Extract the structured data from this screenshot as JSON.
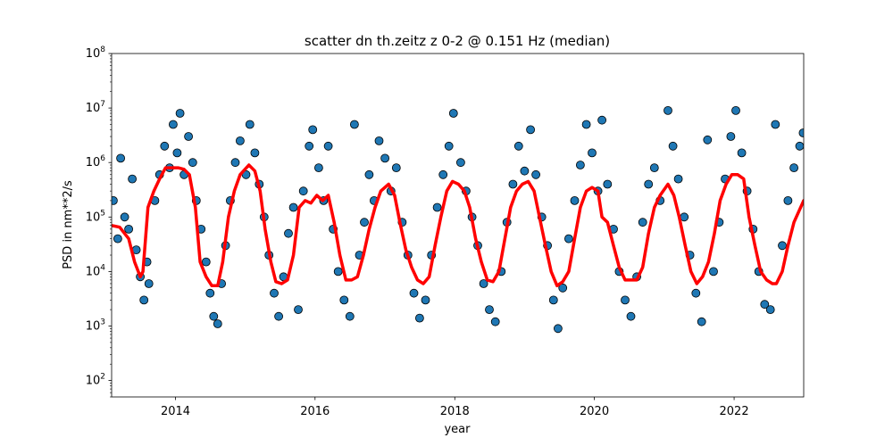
{
  "chart_data": {
    "type": "scatter",
    "title": "scatter dn th.zeitz z 0-2 @ 0.151 Hz (median)",
    "xlabel": "year",
    "ylabel": "PSD in nm**2/s",
    "xlim": [
      "2013-02-01",
      "2022-12-31"
    ],
    "ylim": [
      50,
      100000000
    ],
    "yscale": "log",
    "grid": false,
    "x_ticks": [
      {
        "value": "2014-01-01",
        "label": "2014"
      },
      {
        "value": "2016-01-01",
        "label": "2016"
      },
      {
        "value": "2018-01-01",
        "label": "2018"
      },
      {
        "value": "2020-01-01",
        "label": "2020"
      },
      {
        "value": "2022-01-01",
        "label": "2022"
      }
    ],
    "y_ticks": [
      {
        "value": 100,
        "base": "10",
        "exp": "2"
      },
      {
        "value": 1000,
        "base": "10",
        "exp": "3"
      },
      {
        "value": 10000,
        "base": "10",
        "exp": "4"
      },
      {
        "value": 100000,
        "base": "10",
        "exp": "5"
      },
      {
        "value": 1000000,
        "base": "10",
        "exp": "6"
      },
      {
        "value": 10000000,
        "base": "10",
        "exp": "7"
      },
      {
        "value": 100000000,
        "base": "10",
        "exp": "8"
      }
    ],
    "series": [
      {
        "kind": "scatter",
        "color": "#1f77b4",
        "edgecolor": "#000000",
        "points": [
          [
            "2013-02-10",
            200000
          ],
          [
            "2013-03-05",
            40000
          ],
          [
            "2013-03-20",
            1200000
          ],
          [
            "2013-04-10",
            100000
          ],
          [
            "2013-05-01",
            60000
          ],
          [
            "2013-05-20",
            500000
          ],
          [
            "2013-06-10",
            25000
          ],
          [
            "2013-07-01",
            8000
          ],
          [
            "2013-07-20",
            3000
          ],
          [
            "2013-08-05",
            15000
          ],
          [
            "2013-08-15",
            6000
          ],
          [
            "2013-09-15",
            200000
          ],
          [
            "2013-10-10",
            600000
          ],
          [
            "2013-11-05",
            2000000
          ],
          [
            "2013-12-01",
            800000
          ],
          [
            "2013-12-20",
            5000000
          ],
          [
            "2014-01-10",
            1500000
          ],
          [
            "2014-01-25",
            8000000
          ],
          [
            "2014-02-15",
            600000
          ],
          [
            "2014-03-10",
            3000000
          ],
          [
            "2014-04-01",
            1000000
          ],
          [
            "2014-04-20",
            200000
          ],
          [
            "2014-05-15",
            60000
          ],
          [
            "2014-06-10",
            15000
          ],
          [
            "2014-07-01",
            4000
          ],
          [
            "2014-07-20",
            1500
          ],
          [
            "2014-08-10",
            1100
          ],
          [
            "2014-08-30",
            6000
          ],
          [
            "2014-09-20",
            30000
          ],
          [
            "2014-10-15",
            200000
          ],
          [
            "2014-11-10",
            1000000
          ],
          [
            "2014-12-05",
            2500000
          ],
          [
            "2015-01-05",
            600000
          ],
          [
            "2015-01-25",
            5000000
          ],
          [
            "2015-02-20",
            1500000
          ],
          [
            "2015-03-15",
            400000
          ],
          [
            "2015-04-10",
            100000
          ],
          [
            "2015-05-05",
            20000
          ],
          [
            "2015-06-01",
            4000
          ],
          [
            "2015-06-25",
            1500
          ],
          [
            "2015-07-20",
            8000
          ],
          [
            "2015-08-15",
            50000
          ],
          [
            "2015-09-10",
            150000
          ],
          [
            "2015-10-05",
            2000
          ],
          [
            "2015-11-01",
            300000
          ],
          [
            "2015-12-01",
            2000000
          ],
          [
            "2015-12-20",
            4000000
          ],
          [
            "2016-01-20",
            800000
          ],
          [
            "2016-02-15",
            200000
          ],
          [
            "2016-03-10",
            2000000
          ],
          [
            "2016-04-05",
            60000
          ],
          [
            "2016-05-01",
            10000
          ],
          [
            "2016-06-01",
            3000
          ],
          [
            "2016-07-01",
            1500
          ],
          [
            "2016-07-25",
            5000000
          ],
          [
            "2016-08-20",
            20000
          ],
          [
            "2016-09-15",
            80000
          ],
          [
            "2016-10-10",
            600000
          ],
          [
            "2016-11-05",
            200000
          ],
          [
            "2016-12-01",
            2500000
          ],
          [
            "2017-01-01",
            1200000
          ],
          [
            "2017-02-01",
            300000
          ],
          [
            "2017-03-01",
            800000
          ],
          [
            "2017-04-01",
            80000
          ],
          [
            "2017-05-01",
            20000
          ],
          [
            "2017-06-01",
            4000
          ],
          [
            "2017-07-01",
            1400
          ],
          [
            "2017-08-01",
            3000
          ],
          [
            "2017-09-01",
            20000
          ],
          [
            "2017-10-01",
            150000
          ],
          [
            "2017-11-01",
            600000
          ],
          [
            "2017-12-01",
            2000000
          ],
          [
            "2017-12-25",
            8000000
          ],
          [
            "2018-02-01",
            1000000
          ],
          [
            "2018-03-01",
            300000
          ],
          [
            "2018-04-01",
            100000
          ],
          [
            "2018-05-01",
            30000
          ],
          [
            "2018-06-01",
            6000
          ],
          [
            "2018-07-01",
            2000
          ],
          [
            "2018-08-01",
            1200
          ],
          [
            "2018-09-01",
            10000
          ],
          [
            "2018-10-01",
            80000
          ],
          [
            "2018-11-01",
            400000
          ],
          [
            "2018-12-01",
            2000000
          ],
          [
            "2019-01-01",
            700000
          ],
          [
            "2019-02-01",
            4000000
          ],
          [
            "2019-03-01",
            600000
          ],
          [
            "2019-04-01",
            100000
          ],
          [
            "2019-05-01",
            30000
          ],
          [
            "2019-06-01",
            3000
          ],
          [
            "2019-06-25",
            900
          ],
          [
            "2019-07-20",
            5000
          ],
          [
            "2019-08-20",
            40000
          ],
          [
            "2019-09-20",
            200000
          ],
          [
            "2019-10-20",
            900000
          ],
          [
            "2019-11-20",
            5000000
          ],
          [
            "2019-12-20",
            1500000
          ],
          [
            "2020-01-20",
            300000
          ],
          [
            "2020-02-10",
            6000000
          ],
          [
            "2020-03-10",
            400000
          ],
          [
            "2020-04-10",
            60000
          ],
          [
            "2020-05-10",
            10000
          ],
          [
            "2020-06-10",
            3000
          ],
          [
            "2020-07-10",
            1500
          ],
          [
            "2020-08-10",
            8000
          ],
          [
            "2020-09-10",
            80000
          ],
          [
            "2020-10-10",
            400000
          ],
          [
            "2020-11-10",
            800000
          ],
          [
            "2020-12-10",
            200000
          ],
          [
            "2021-01-20",
            9000000
          ],
          [
            "2021-02-15",
            2000000
          ],
          [
            "2021-03-15",
            500000
          ],
          [
            "2021-04-15",
            100000
          ],
          [
            "2021-05-15",
            20000
          ],
          [
            "2021-06-15",
            4000
          ],
          [
            "2021-07-15",
            1200
          ],
          [
            "2021-08-15",
            2600000
          ],
          [
            "2021-09-15",
            10000
          ],
          [
            "2021-10-15",
            80000
          ],
          [
            "2021-11-15",
            500000
          ],
          [
            "2021-12-15",
            3000000
          ],
          [
            "2022-01-10",
            9000000
          ],
          [
            "2022-02-10",
            1500000
          ],
          [
            "2022-03-10",
            300000
          ],
          [
            "2022-04-10",
            60000
          ],
          [
            "2022-05-10",
            10000
          ],
          [
            "2022-06-10",
            2500
          ],
          [
            "2022-07-10",
            2000
          ],
          [
            "2022-08-05",
            5000000
          ],
          [
            "2022-09-10",
            30000
          ],
          [
            "2022-10-10",
            200000
          ],
          [
            "2022-11-10",
            800000
          ],
          [
            "2022-12-10",
            2000000
          ],
          [
            "2022-12-28",
            3500000
          ]
        ]
      },
      {
        "kind": "line",
        "name": "median",
        "color": "#ff0000",
        "points": [
          [
            "2013-02-01",
            70000
          ],
          [
            "2013-03-15",
            65000
          ],
          [
            "2013-05-01",
            40000
          ],
          [
            "2013-06-01",
            15000
          ],
          [
            "2013-07-01",
            8000
          ],
          [
            "2013-07-15",
            10000
          ],
          [
            "2013-08-10",
            150000
          ],
          [
            "2013-09-10",
            300000
          ],
          [
            "2013-10-10",
            500000
          ],
          [
            "2013-11-10",
            800000
          ],
          [
            "2013-12-15",
            800000
          ],
          [
            "2014-01-15",
            800000
          ],
          [
            "2014-02-15",
            750000
          ],
          [
            "2014-03-15",
            600000
          ],
          [
            "2014-04-15",
            150000
          ],
          [
            "2014-05-10",
            15000
          ],
          [
            "2014-06-10",
            8000
          ],
          [
            "2014-07-10",
            5500
          ],
          [
            "2014-08-10",
            5500
          ],
          [
            "2014-09-05",
            15000
          ],
          [
            "2014-10-05",
            100000
          ],
          [
            "2014-11-05",
            300000
          ],
          [
            "2014-12-05",
            600000
          ],
          [
            "2015-01-20",
            900000
          ],
          [
            "2015-02-20",
            700000
          ],
          [
            "2015-03-20",
            300000
          ],
          [
            "2015-04-15",
            60000
          ],
          [
            "2015-05-15",
            15000
          ],
          [
            "2015-06-10",
            6500
          ],
          [
            "2015-07-10",
            6000
          ],
          [
            "2015-08-10",
            7000
          ],
          [
            "2015-09-10",
            20000
          ],
          [
            "2015-10-10",
            150000
          ],
          [
            "2015-11-10",
            200000
          ],
          [
            "2015-12-10",
            180000
          ],
          [
            "2016-01-10",
            250000
          ],
          [
            "2016-02-10",
            200000
          ],
          [
            "2016-03-10",
            250000
          ],
          [
            "2016-04-10",
            80000
          ],
          [
            "2016-05-10",
            20000
          ],
          [
            "2016-06-10",
            7000
          ],
          [
            "2016-07-10",
            7000
          ],
          [
            "2016-08-10",
            8000
          ],
          [
            "2016-09-10",
            20000
          ],
          [
            "2016-10-10",
            60000
          ],
          [
            "2016-11-10",
            150000
          ],
          [
            "2016-12-10",
            300000
          ],
          [
            "2017-01-20",
            400000
          ],
          [
            "2017-02-20",
            250000
          ],
          [
            "2017-03-20",
            80000
          ],
          [
            "2017-04-20",
            25000
          ],
          [
            "2017-05-20",
            12000
          ],
          [
            "2017-06-20",
            7000
          ],
          [
            "2017-07-20",
            6000
          ],
          [
            "2017-08-20",
            8000
          ],
          [
            "2017-09-20",
            30000
          ],
          [
            "2017-10-20",
            100000
          ],
          [
            "2017-11-20",
            300000
          ],
          [
            "2017-12-20",
            450000
          ],
          [
            "2018-01-20",
            400000
          ],
          [
            "2018-02-20",
            300000
          ],
          [
            "2018-03-20",
            150000
          ],
          [
            "2018-04-20",
            40000
          ],
          [
            "2018-05-20",
            15000
          ],
          [
            "2018-06-20",
            7000
          ],
          [
            "2018-07-20",
            6500
          ],
          [
            "2018-08-20",
            10000
          ],
          [
            "2018-09-20",
            40000
          ],
          [
            "2018-10-20",
            150000
          ],
          [
            "2018-11-20",
            300000
          ],
          [
            "2018-12-20",
            400000
          ],
          [
            "2019-01-20",
            450000
          ],
          [
            "2019-02-20",
            300000
          ],
          [
            "2019-03-20",
            100000
          ],
          [
            "2019-04-20",
            30000
          ],
          [
            "2019-05-20",
            10000
          ],
          [
            "2019-06-20",
            5500
          ],
          [
            "2019-07-20",
            6500
          ],
          [
            "2019-08-20",
            10000
          ],
          [
            "2019-09-20",
            40000
          ],
          [
            "2019-10-20",
            150000
          ],
          [
            "2019-11-20",
            300000
          ],
          [
            "2019-12-20",
            350000
          ],
          [
            "2020-01-20",
            300000
          ],
          [
            "2020-02-10",
            100000
          ],
          [
            "2020-03-10",
            80000
          ],
          [
            "2020-04-10",
            30000
          ],
          [
            "2020-05-10",
            12000
          ],
          [
            "2020-06-10",
            7000
          ],
          [
            "2020-07-10",
            7000
          ],
          [
            "2020-08-10",
            7000
          ],
          [
            "2020-09-10",
            12000
          ],
          [
            "2020-10-10",
            50000
          ],
          [
            "2020-11-10",
            150000
          ],
          [
            "2020-12-10",
            250000
          ],
          [
            "2021-01-20",
            400000
          ],
          [
            "2021-02-20",
            250000
          ],
          [
            "2021-03-20",
            100000
          ],
          [
            "2021-04-20",
            30000
          ],
          [
            "2021-05-20",
            10000
          ],
          [
            "2021-06-20",
            6000
          ],
          [
            "2021-07-20",
            8000
          ],
          [
            "2021-08-20",
            15000
          ],
          [
            "2021-09-20",
            50000
          ],
          [
            "2021-10-20",
            200000
          ],
          [
            "2021-11-20",
            400000
          ],
          [
            "2021-12-20",
            600000
          ],
          [
            "2022-01-20",
            600000
          ],
          [
            "2022-02-20",
            500000
          ],
          [
            "2022-03-20",
            100000
          ],
          [
            "2022-04-20",
            30000
          ],
          [
            "2022-05-20",
            10000
          ],
          [
            "2022-06-20",
            7000
          ],
          [
            "2022-07-20",
            6000
          ],
          [
            "2022-08-10",
            6000
          ],
          [
            "2022-09-10",
            10000
          ],
          [
            "2022-10-10",
            30000
          ],
          [
            "2022-11-10",
            80000
          ],
          [
            "2022-12-31",
            200000
          ]
        ]
      }
    ]
  }
}
